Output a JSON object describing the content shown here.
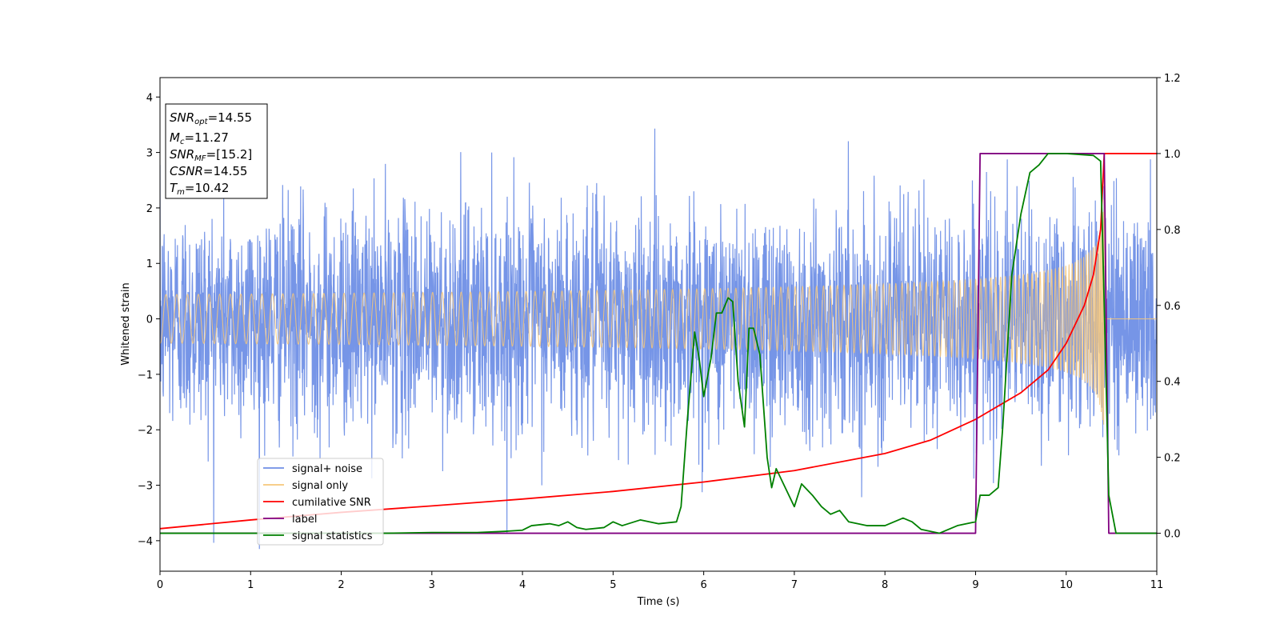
{
  "chart_data": {
    "type": "line",
    "xlabel": "Time (s)",
    "ylabel": "Whitened strain",
    "xlim": [
      0,
      11
    ],
    "ylim": [
      -4.55,
      4.35
    ],
    "y2lim": [
      -0.1,
      1.2
    ],
    "grid": false,
    "legend_position": "lower-left",
    "x_ticks": [
      "0",
      "1",
      "2",
      "3",
      "4",
      "5",
      "6",
      "7",
      "8",
      "9",
      "10",
      "11"
    ],
    "y_ticks": [
      {
        "value": -4,
        "label": "−4"
      },
      {
        "value": -3,
        "label": "−3"
      },
      {
        "value": -2,
        "label": "−2"
      },
      {
        "value": -1,
        "label": "−1"
      },
      {
        "value": 0,
        "label": "0"
      },
      {
        "value": 1,
        "label": "1"
      },
      {
        "value": 2,
        "label": "2"
      },
      {
        "value": 3,
        "label": "3"
      },
      {
        "value": 4,
        "label": "4"
      }
    ],
    "y2_ticks": [
      "0.0",
      "0.2",
      "0.4",
      "0.6",
      "0.8",
      "1.0",
      "1.2"
    ],
    "info_box": [
      {
        "base": "SNR",
        "sub": "opt",
        "value": "=14.55"
      },
      {
        "base": "M",
        "sub": "c",
        "value": "=11.27"
      },
      {
        "base": "SNR",
        "sub": "MF",
        "value": "=[15.2]"
      },
      {
        "base": "CSNR",
        "sub": "",
        "value": "=14.55"
      },
      {
        "base": "T",
        "sub": "m",
        "value": "=10.42"
      }
    ],
    "series": [
      {
        "name": "signal+ noise",
        "color": "#6f8fe6",
        "axis": "left",
        "noise_sigma": 1.0,
        "points": [
          [
            0,
            0
          ],
          [
            11,
            0
          ]
        ]
      },
      {
        "name": "signal only",
        "color": "#f6c77a",
        "axis": "left",
        "chirp_start": 0,
        "chirp_end": 10.42,
        "amplitude_at_end": 2.25
      },
      {
        "name": "cumilative SNR",
        "color": "#ff0000",
        "axis": "right",
        "points": [
          [
            0,
            0.012
          ],
          [
            1,
            0.035
          ],
          [
            2,
            0.055
          ],
          [
            3,
            0.072
          ],
          [
            4,
            0.09
          ],
          [
            5,
            0.11
          ],
          [
            6,
            0.135
          ],
          [
            7,
            0.165
          ],
          [
            8,
            0.21
          ],
          [
            8.5,
            0.245
          ],
          [
            9,
            0.3
          ],
          [
            9.5,
            0.37
          ],
          [
            9.8,
            0.43
          ],
          [
            10,
            0.5
          ],
          [
            10.2,
            0.6
          ],
          [
            10.3,
            0.68
          ],
          [
            10.38,
            0.8
          ],
          [
            10.42,
            1.0
          ],
          [
            11,
            1.0
          ]
        ]
      },
      {
        "name": "label",
        "color": "#800080",
        "axis": "right",
        "points": [
          [
            0,
            0
          ],
          [
            9.0,
            0
          ],
          [
            9.05,
            1.0
          ],
          [
            10.42,
            1.0
          ],
          [
            10.47,
            0
          ],
          [
            11,
            0
          ]
        ]
      },
      {
        "name": "signal statistics",
        "color": "#008000",
        "axis": "right",
        "points": [
          [
            0,
            0.0
          ],
          [
            0.5,
            0.0
          ],
          [
            1,
            0.0
          ],
          [
            1.5,
            0.0
          ],
          [
            2,
            0.0
          ],
          [
            2.5,
            0.0
          ],
          [
            3,
            0.002
          ],
          [
            3.5,
            0.002
          ],
          [
            3.8,
            0.005
          ],
          [
            4.0,
            0.008
          ],
          [
            4.1,
            0.02
          ],
          [
            4.3,
            0.025
          ],
          [
            4.4,
            0.02
          ],
          [
            4.5,
            0.03
          ],
          [
            4.6,
            0.015
          ],
          [
            4.7,
            0.01
          ],
          [
            4.9,
            0.015
          ],
          [
            5.0,
            0.03
          ],
          [
            5.1,
            0.02
          ],
          [
            5.3,
            0.035
          ],
          [
            5.4,
            0.03
          ],
          [
            5.5,
            0.025
          ],
          [
            5.7,
            0.03
          ],
          [
            5.75,
            0.07
          ],
          [
            5.82,
            0.3
          ],
          [
            5.9,
            0.53
          ],
          [
            5.95,
            0.46
          ],
          [
            6.0,
            0.36
          ],
          [
            6.08,
            0.46
          ],
          [
            6.14,
            0.58
          ],
          [
            6.2,
            0.58
          ],
          [
            6.27,
            0.62
          ],
          [
            6.32,
            0.61
          ],
          [
            6.38,
            0.4
          ],
          [
            6.45,
            0.28
          ],
          [
            6.5,
            0.54
          ],
          [
            6.55,
            0.54
          ],
          [
            6.62,
            0.47
          ],
          [
            6.7,
            0.2
          ],
          [
            6.75,
            0.12
          ],
          [
            6.8,
            0.17
          ],
          [
            6.9,
            0.12
          ],
          [
            7.0,
            0.07
          ],
          [
            7.08,
            0.13
          ],
          [
            7.2,
            0.1
          ],
          [
            7.3,
            0.07
          ],
          [
            7.4,
            0.05
          ],
          [
            7.5,
            0.06
          ],
          [
            7.6,
            0.03
          ],
          [
            7.8,
            0.02
          ],
          [
            8.0,
            0.02
          ],
          [
            8.2,
            0.04
          ],
          [
            8.3,
            0.03
          ],
          [
            8.4,
            0.01
          ],
          [
            8.6,
            0.0
          ],
          [
            8.8,
            0.02
          ],
          [
            9.0,
            0.03
          ],
          [
            9.05,
            0.1
          ],
          [
            9.15,
            0.1
          ],
          [
            9.25,
            0.12
          ],
          [
            9.3,
            0.28
          ],
          [
            9.4,
            0.68
          ],
          [
            9.5,
            0.84
          ],
          [
            9.6,
            0.95
          ],
          [
            9.7,
            0.97
          ],
          [
            9.8,
            1.0
          ],
          [
            10.0,
            1.0
          ],
          [
            10.3,
            0.995
          ],
          [
            10.38,
            0.98
          ],
          [
            10.42,
            0.6
          ],
          [
            10.47,
            0.1
          ],
          [
            10.55,
            0.0
          ],
          [
            11,
            0.0
          ]
        ]
      }
    ]
  }
}
